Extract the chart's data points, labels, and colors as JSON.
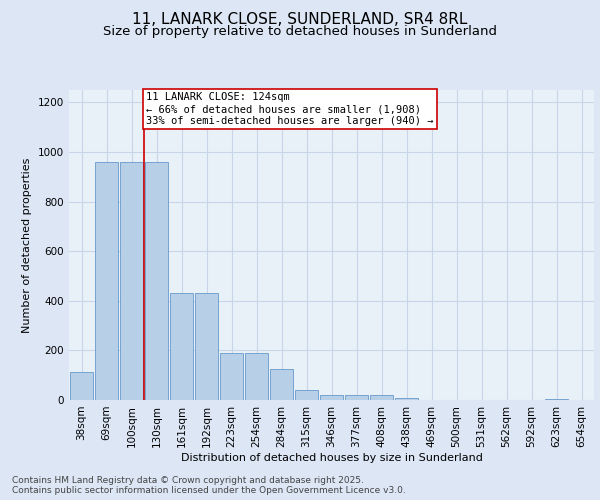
{
  "title_line1": "11, LANARK CLOSE, SUNDERLAND, SR4 8RL",
  "title_line2": "Size of property relative to detached houses in Sunderland",
  "xlabel": "Distribution of detached houses by size in Sunderland",
  "ylabel": "Number of detached properties",
  "categories": [
    "38sqm",
    "69sqm",
    "100sqm",
    "130sqm",
    "161sqm",
    "192sqm",
    "223sqm",
    "254sqm",
    "284sqm",
    "315sqm",
    "346sqm",
    "377sqm",
    "408sqm",
    "438sqm",
    "469sqm",
    "500sqm",
    "531sqm",
    "562sqm",
    "592sqm",
    "623sqm",
    "654sqm"
  ],
  "values": [
    113,
    960,
    960,
    960,
    430,
    430,
    190,
    190,
    125,
    40,
    20,
    20,
    20,
    10,
    0,
    0,
    0,
    0,
    0,
    5,
    0
  ],
  "bar_color": "#b8cfe8",
  "bar_edge_color": "#6699cc",
  "vline_color": "#cc0000",
  "vline_pos": 2.5,
  "annotation_text": "11 LANARK CLOSE: 124sqm\n← 66% of detached houses are smaller (1,908)\n33% of semi-detached houses are larger (940) →",
  "annotation_box_color": "white",
  "annotation_box_edge": "#cc0000",
  "bg_color": "#dce6f5",
  "plot_bg_color": "#e8f0f8",
  "grid_color": "#c8d4e8",
  "ylim": [
    0,
    1250
  ],
  "yticks": [
    0,
    200,
    400,
    600,
    800,
    1000,
    1200
  ],
  "footnote": "Contains HM Land Registry data © Crown copyright and database right 2025.\nContains public sector information licensed under the Open Government Licence v3.0.",
  "title_fontsize": 11,
  "subtitle_fontsize": 9.5,
  "axis_label_fontsize": 8,
  "tick_fontsize": 7.5,
  "annotation_fontsize": 7.5,
  "footnote_fontsize": 6.5
}
